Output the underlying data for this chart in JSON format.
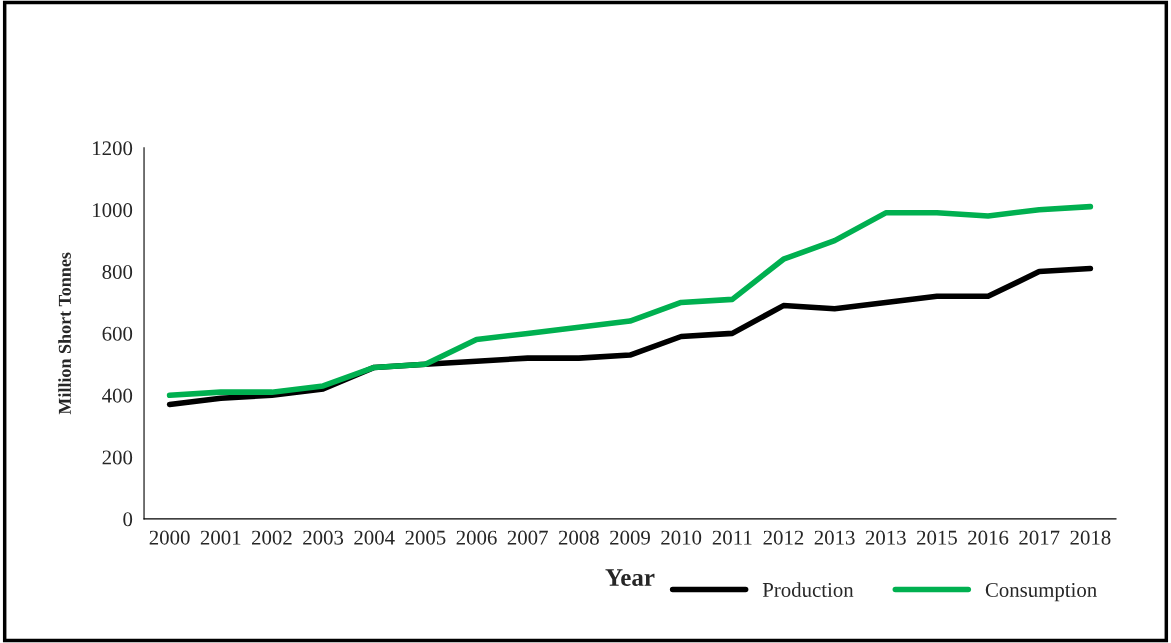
{
  "chart_data": {
    "type": "line",
    "xlabel": "Year",
    "ylabel": "Million Short Tonnes",
    "categories": [
      "2000",
      "2001",
      "2002",
      "2003",
      "2004",
      "2005",
      "2006",
      "2007",
      "2008",
      "2009",
      "2010",
      "2011",
      "2012",
      "2013",
      "2013",
      "2015",
      "2016",
      "2017",
      "2018"
    ],
    "series": [
      {
        "name": "Production",
        "color": "#000000",
        "values": [
          370,
          390,
          400,
          420,
          490,
          500,
          510,
          520,
          520,
          530,
          590,
          600,
          690,
          680,
          700,
          720,
          720,
          800,
          810
        ]
      },
      {
        "name": "Consumption",
        "color": "#00b050",
        "values": [
          400,
          410,
          410,
          430,
          490,
          500,
          580,
          600,
          620,
          640,
          700,
          710,
          840,
          900,
          990,
          990,
          980,
          1000,
          1010
        ]
      }
    ],
    "ylim": [
      0,
      1200
    ],
    "yticks": [
      0,
      200,
      400,
      600,
      800,
      1000,
      1200
    ],
    "grid": false,
    "legend": "bottom",
    "marker": "none",
    "line_style": "solid"
  }
}
